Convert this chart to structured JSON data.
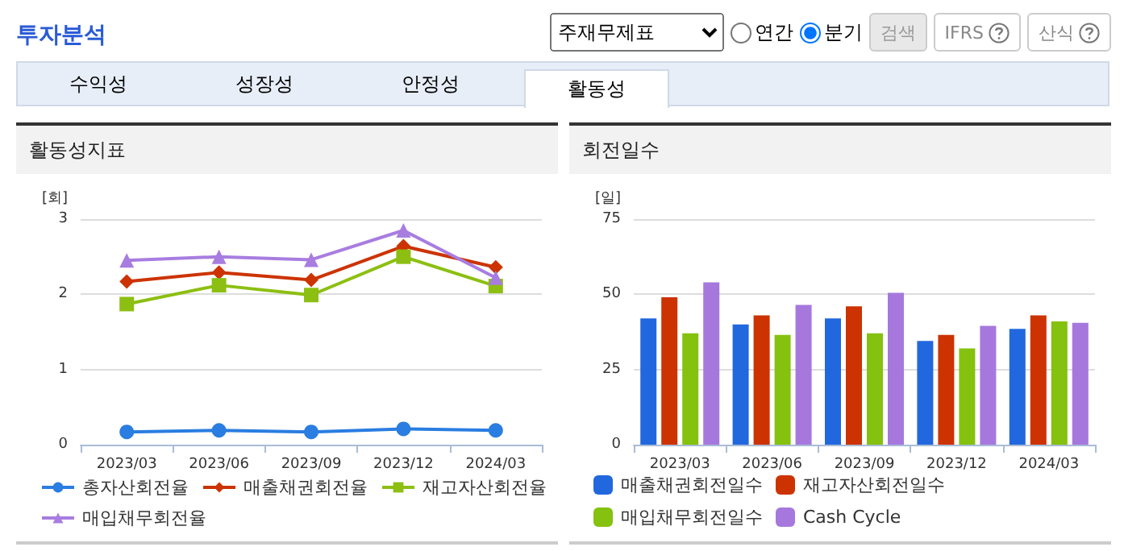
{
  "chart_data": [
    {
      "type": "other",
      "title": "투자분석",
      "annotations": [
        "주재무제표",
        "연간",
        "분기",
        "검색",
        "IFRS",
        "산식",
        "수익성",
        "성장성",
        "안정성",
        "활동성"
      ]
    },
    {
      "type": "line",
      "title": "활동성지표",
      "ylabel": "[회]",
      "categories": [
        "2023/03",
        "2023/06",
        "2023/09",
        "2023/12",
        "2024/03"
      ],
      "ylim": [
        0,
        3
      ],
      "yticks": [
        0,
        1,
        2,
        3
      ],
      "grid": "y",
      "legend": "bottom",
      "series": [
        {
          "name": "총자산회전율",
          "color": "#2a7de1",
          "marker": "circle",
          "values": [
            0.17,
            0.19,
            0.17,
            0.21,
            0.19
          ]
        },
        {
          "name": "매출채권회전율",
          "color": "#cc3300",
          "marker": "diamond",
          "values": [
            2.17,
            2.29,
            2.19,
            2.64,
            2.36
          ]
        },
        {
          "name": "재고자산회전율",
          "color": "#8cbf12",
          "marker": "square",
          "values": [
            1.87,
            2.12,
            1.99,
            2.5,
            2.11
          ]
        },
        {
          "name": "매입채무회전율",
          "color": "#a87de0",
          "marker": "triangle",
          "values": [
            2.45,
            2.5,
            2.46,
            2.85,
            2.22
          ]
        }
      ]
    },
    {
      "type": "bar",
      "title": "회전일수",
      "ylabel": "[일]",
      "categories": [
        "2023/03",
        "2023/06",
        "2023/09",
        "2023/12",
        "2024/03"
      ],
      "ylim": [
        0,
        75
      ],
      "yticks": [
        0,
        25,
        50,
        75
      ],
      "grid": "y",
      "legend": "bottom",
      "series": [
        {
          "name": "매출채권회전일수",
          "color": "#2168de",
          "values": [
            42,
            40,
            42,
            34.5,
            38.5
          ]
        },
        {
          "name": "재고자산회전일수",
          "color": "#cc3300",
          "values": [
            49,
            43,
            46,
            36.5,
            43
          ]
        },
        {
          "name": "매입채무회전일수",
          "color": "#85c10f",
          "values": [
            37,
            36.5,
            37,
            32,
            41
          ]
        },
        {
          "name": "Cash Cycle",
          "color": "#a678dd",
          "values": [
            54,
            46.5,
            50.5,
            39.5,
            40.5
          ]
        }
      ]
    }
  ]
}
